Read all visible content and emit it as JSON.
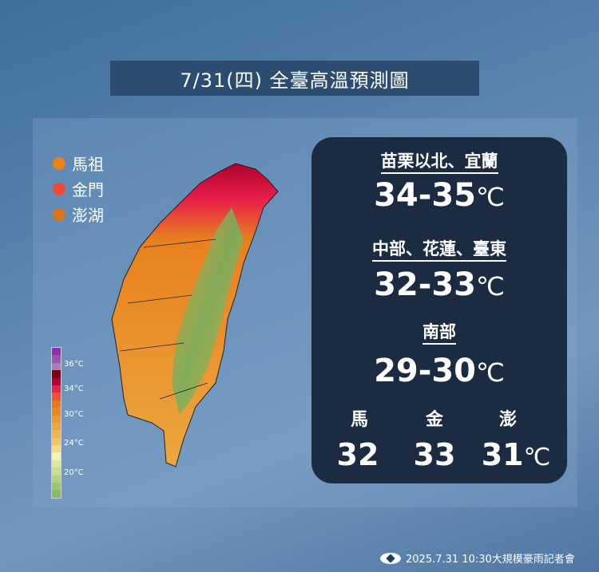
{
  "title": "7/31(四) 全臺高溫預測圖",
  "islands": [
    {
      "label": "馬祖",
      "color": "#e8821a"
    },
    {
      "label": "金門",
      "color": "#ee4a3a"
    },
    {
      "label": "澎湖",
      "color": "#d9741c"
    }
  ],
  "legend": {
    "colors": [
      "#8e2fb0",
      "#9a55aa",
      "#aa7cbc",
      "#7a0012",
      "#b0002e",
      "#e8204a",
      "#f0503a",
      "#e87818",
      "#e88a22",
      "#e99a30",
      "#eba840",
      "#eeb852",
      "#f0c862",
      "#f4dc82",
      "#f6f2b6",
      "#dde8a0",
      "#c8e090",
      "#b0d480",
      "#98c870",
      "#86bf60"
    ],
    "labels": [
      "36°C",
      "34°C",
      "30°C",
      "24°C",
      "20°C"
    ]
  },
  "regions": [
    {
      "name": "苗栗以北、宜蘭",
      "value": "34-35",
      "unit": "℃"
    },
    {
      "name": "中部、花蓮、臺東",
      "value": "32-33",
      "unit": "℃"
    },
    {
      "name": "南部",
      "value": "29-30",
      "unit": "℃"
    }
  ],
  "outlying": [
    {
      "name": "馬",
      "value": "32"
    },
    {
      "name": "金",
      "value": "33"
    },
    {
      "name": "澎",
      "value": "31",
      "unit": "℃"
    }
  ],
  "footer": "2025.7.31 10:30大規模豪雨記者會"
}
